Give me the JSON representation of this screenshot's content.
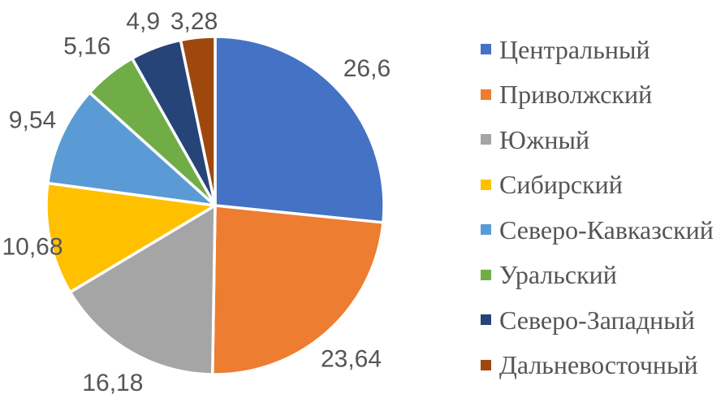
{
  "chart_data": {
    "type": "pie",
    "title": "",
    "legend_position": "right",
    "start_angle_deg": 0,
    "direction": "clockwise",
    "decimal_separator": ",",
    "categories": [
      "Центральный",
      "Приволжский",
      "Южный",
      "Сибирский",
      "Северо-Кавказский",
      "Уральский",
      "Северо-Западный",
      "Дальневосточный"
    ],
    "values": [
      26.6,
      23.64,
      16.18,
      10.68,
      9.54,
      5.16,
      4.9,
      3.28
    ],
    "labels": [
      "26,6",
      "23,64",
      "16,18",
      "10,68",
      "9,54",
      "5,16",
      "4,9",
      "3,28"
    ],
    "colors": [
      "#4472C4",
      "#ED7D31",
      "#A5A5A5",
      "#FFC000",
      "#5B9BD5",
      "#70AD47",
      "#264478",
      "#9E480E"
    ],
    "slice_border_color": "#FFFFFF",
    "label_color": "#555555"
  }
}
